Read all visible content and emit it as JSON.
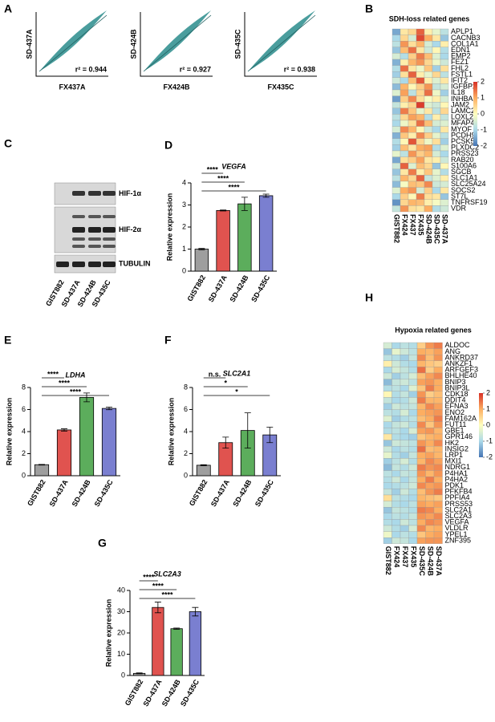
{
  "scatter_panels": {
    "label": "A",
    "plots": [
      {
        "x_label": "FX437A",
        "y_label": "SD-437A",
        "annotation": "r² = 0.944"
      },
      {
        "x_label": "FX424B",
        "y_label": "SD-424B",
        "annotation": "r² = 0.927"
      },
      {
        "x_label": "FX435C",
        "y_label": "SD-435C",
        "annotation": "r² = 0.938"
      }
    ]
  },
  "western_blot": {
    "label": "C",
    "bands": [
      "HIF-1α",
      "HIF-2α",
      "TUBULIN"
    ],
    "samples": [
      "GIST882",
      "SD-437A",
      "SD-424B",
      "SD-435C"
    ]
  },
  "chart_data": [
    {
      "label": "B",
      "type": "heatmap",
      "title": "SDH-loss related genes",
      "rows": [
        "APLP1",
        "CACNB3",
        "COL1A1",
        "EDN1",
        "EMP2",
        "FEZ1",
        "FHL2",
        "FSTL1",
        "IFIT2",
        "IGFBP2",
        "IL18",
        "INHBA",
        "JAM2",
        "LAMC2",
        "LOXL2",
        "MFAP4",
        "MYOF",
        "PCDH9",
        "PCSK5",
        "PLXDC2",
        "PRSS23",
        "RAB20",
        "S100A6",
        "SGCB",
        "SLC1A1",
        "SLC25A24",
        "SOCS2",
        "ST7L",
        "TNFRSF19",
        "VDR"
      ],
      "columns": [
        "GIST882",
        "FX424",
        "FX437",
        "FX435",
        "SD-424B",
        "SD-435C",
        "SD-437A"
      ],
      "values": [
        [
          -1.5,
          0.3,
          0.5,
          1.6,
          0.2,
          -0.3,
          -0.8
        ],
        [
          -1.0,
          0.5,
          -0.5,
          1.8,
          1.0,
          0.3,
          -1.2
        ],
        [
          -0.8,
          1.2,
          0.4,
          0.9,
          -0.5,
          -1.0,
          0.2
        ],
        [
          -1.2,
          0.8,
          1.5,
          0.3,
          -0.6,
          0.1,
          -0.9
        ],
        [
          -0.5,
          -0.9,
          0.6,
          1.4,
          0.8,
          -0.4,
          -1.0
        ],
        [
          -1.4,
          0.2,
          0.9,
          1.2,
          0.5,
          -0.2,
          -0.6
        ],
        [
          -0.9,
          1.5,
          0.3,
          -0.2,
          0.7,
          -1.1,
          0.4
        ],
        [
          -1.1,
          0.4,
          1.6,
          0.2,
          -0.3,
          0.5,
          -0.8
        ],
        [
          -0.6,
          -1.0,
          0.8,
          1.7,
          0.2,
          -0.4,
          0.3
        ],
        [
          -1.3,
          0.9,
          0.1,
          0.6,
          1.2,
          -0.7,
          -0.5
        ],
        [
          -0.4,
          1.1,
          -0.8,
          0.5,
          1.5,
          -0.2,
          -1.1
        ],
        [
          -1.6,
          0.6,
          1.3,
          0.4,
          -0.1,
          0.2,
          -0.5
        ],
        [
          -0.7,
          0.2,
          0.5,
          1.9,
          -0.4,
          -0.6,
          0.1
        ],
        [
          -1.2,
          1.4,
          0.7,
          -0.3,
          0.3,
          -0.8,
          0.5
        ],
        [
          -0.8,
          0.5,
          1.1,
          0.9,
          -0.9,
          0.2,
          -0.7
        ],
        [
          -1.0,
          -0.2,
          0.4,
          1.5,
          0.8,
          -0.5,
          -0.4
        ],
        [
          -0.5,
          1.3,
          0.9,
          0.1,
          -0.6,
          -1.0,
          0.3
        ],
        [
          -1.4,
          0.7,
          0.2,
          1.3,
          0.6,
          -0.3,
          -0.8
        ],
        [
          -0.9,
          0.1,
          1.7,
          0.5,
          -0.2,
          0.4,
          -1.1
        ],
        [
          -1.1,
          0.8,
          0.3,
          1.0,
          1.1,
          -0.9,
          -0.4
        ],
        [
          -0.3,
          -0.8,
          1.2,
          0.6,
          0.9,
          -0.5,
          -1.0
        ],
        [
          -1.5,
          0.4,
          0.6,
          1.1,
          0.3,
          0.2,
          -0.6
        ],
        [
          -0.6,
          1.6,
          -0.4,
          0.8,
          0.5,
          -1.2,
          0.1
        ],
        [
          -1.2,
          0.3,
          1.4,
          0.2,
          0.7,
          -0.3,
          -0.9
        ],
        [
          -0.8,
          0.9,
          0.5,
          1.6,
          -0.7,
          -0.4,
          0.2
        ],
        [
          -1.3,
          -0.1,
          0.8,
          0.7,
          1.3,
          -0.6,
          -0.5
        ],
        [
          -0.4,
          1.0,
          1.2,
          -0.5,
          0.6,
          -1.0,
          0.3
        ],
        [
          -1.0,
          0.6,
          0.1,
          1.4,
          0.4,
          0.3,
          -1.2
        ],
        [
          -1.7,
          0.5,
          0.9,
          0.8,
          0.2,
          -0.1,
          -0.4
        ],
        [
          -0.7,
          1.2,
          0.4,
          0.3,
          1.0,
          -0.9,
          -0.6
        ]
      ],
      "clim": [
        -2,
        2
      ],
      "cticks": [
        2,
        1,
        0,
        -1,
        -2
      ]
    },
    {
      "label": "D",
      "type": "bar",
      "title": "VEGFA",
      "y_label": "Relative expression",
      "categories": [
        "GIST882",
        "SD-437A",
        "SD-424B",
        "SD-435C"
      ],
      "values": [
        1,
        2.75,
        3.05,
        3.42
      ],
      "errors": [
        0.03,
        0.02,
        0.3,
        0.07
      ],
      "colors": [
        "#9e9e9e",
        "#e0534f",
        "#5cad5c",
        "#7a7fd0"
      ],
      "ylim": [
        0,
        4
      ],
      "yticks": [
        0,
        1,
        2,
        3,
        4
      ],
      "significance": [
        {
          "pair": [
            "GIST882",
            "SD-437A"
          ],
          "label": "****"
        },
        {
          "pair": [
            "GIST882",
            "SD-424B"
          ],
          "label": "****"
        },
        {
          "pair": [
            "GIST882",
            "SD-435C"
          ],
          "label": "****"
        }
      ]
    },
    {
      "label": "E",
      "type": "bar",
      "title": "LDHA",
      "y_label": "Relative expression",
      "categories": [
        "GIST882",
        "SD-437A",
        "SD-424B",
        "SD-435C"
      ],
      "values": [
        1,
        4.15,
        7.1,
        6.1
      ],
      "errors": [
        0.03,
        0.1,
        0.4,
        0.12
      ],
      "colors": [
        "#9e9e9e",
        "#e0534f",
        "#5cad5c",
        "#7a7fd0"
      ],
      "ylim": [
        0,
        8
      ],
      "yticks": [
        0,
        2,
        4,
        6,
        8
      ],
      "significance": [
        {
          "pair": [
            "GIST882",
            "SD-437A"
          ],
          "label": "****"
        },
        {
          "pair": [
            "GIST882",
            "SD-424B"
          ],
          "label": "****"
        },
        {
          "pair": [
            "GIST882",
            "SD-435C"
          ],
          "label": "****"
        }
      ]
    },
    {
      "label": "F",
      "type": "bar",
      "title": "SLC2A1",
      "y_label": "Relative expression",
      "categories": [
        "GIST882",
        "SD-437A",
        "SD-424B",
        "SD-435C"
      ],
      "values": [
        0.95,
        3.0,
        4.1,
        3.7
      ],
      "errors": [
        0.05,
        0.5,
        1.6,
        0.7
      ],
      "colors": [
        "#9e9e9e",
        "#e0534f",
        "#5cad5c",
        "#7a7fd0"
      ],
      "ylim": [
        0,
        8
      ],
      "yticks": [
        0,
        2,
        4,
        6,
        8
      ],
      "significance": [
        {
          "pair": [
            "GIST882",
            "SD-437A"
          ],
          "label": "n.s."
        },
        {
          "pair": [
            "GIST882",
            "SD-424B"
          ],
          "label": "*"
        },
        {
          "pair": [
            "GIST882",
            "SD-435C"
          ],
          "label": "*"
        }
      ]
    },
    {
      "label": "G",
      "type": "bar",
      "title": "SLC2A3",
      "y_label": "Relative expression",
      "categories": [
        "GIST882",
        "SD-437A",
        "SD-424B",
        "SD-435C"
      ],
      "values": [
        1,
        32,
        22,
        30
      ],
      "errors": [
        0.2,
        2.5,
        0.3,
        2
      ],
      "colors": [
        "#9e9e9e",
        "#e0534f",
        "#5cad5c",
        "#7a7fd0"
      ],
      "ylim": [
        0,
        40
      ],
      "yticks": [
        0,
        10,
        20,
        30,
        40
      ],
      "significance": [
        {
          "pair": [
            "GIST882",
            "SD-437A"
          ],
          "label": "****"
        },
        {
          "pair": [
            "GIST882",
            "SD-424B"
          ],
          "label": "****"
        },
        {
          "pair": [
            "GIST882",
            "SD-435C"
          ],
          "label": "****"
        }
      ]
    },
    {
      "label": "H",
      "type": "heatmap",
      "title": "Hypoxia related genes",
      "rows": [
        "ALDOC",
        "ANG",
        "ANKRD37",
        "ANKZF1",
        "ARFGEF3",
        "BHLHE40",
        "BNIP3",
        "BNIP3L",
        "CDK18",
        "DDIT4",
        "EFNA3",
        "ENO2",
        "FAM162A",
        "FUT11",
        "GBE1",
        "GPR146",
        "HK2",
        "INSIG2",
        "LRP1",
        "MXI1",
        "NDRG1",
        "P4HA1",
        "P4HA2",
        "PDK1",
        "PFKFB4",
        "PPFIA4",
        "PRSS53",
        "SLC2A1",
        "SLC2A3",
        "VEGFA",
        "VLDLR",
        "YPEL1",
        "ZNF395"
      ],
      "columns": [
        "GIST882",
        "FX424",
        "FX437",
        "FX435",
        "SD-435C",
        "SD-424B",
        "SD-437A"
      ],
      "values": [
        [
          -0.5,
          -1.0,
          -0.8,
          -0.9,
          0.6,
          1.2,
          1.4
        ],
        [
          -1.2,
          -0.3,
          -0.6,
          -0.8,
          1.0,
          0.9,
          1.1
        ],
        [
          -0.8,
          -0.9,
          -1.1,
          -0.7,
          1.3,
          0.8,
          1.2
        ],
        [
          0.2,
          -0.6,
          -0.9,
          -1.0,
          0.9,
          0.7,
          0.6
        ],
        [
          -1.0,
          -0.5,
          -0.7,
          -0.9,
          1.5,
          0.6,
          1.0
        ],
        [
          -0.6,
          -1.1,
          -0.8,
          -0.5,
          0.8,
          1.1,
          1.3
        ],
        [
          -1.3,
          -0.7,
          -0.6,
          -0.8,
          1.1,
          1.2,
          1.0
        ],
        [
          -0.9,
          -0.8,
          -1.0,
          -0.4,
          0.7,
          1.4,
          1.0
        ],
        [
          0.1,
          -0.9,
          -0.7,
          -1.1,
          1.2,
          0.6,
          0.8
        ],
        [
          -0.7,
          -1.0,
          -0.9,
          -0.6,
          1.4,
          0.9,
          0.9
        ],
        [
          -1.1,
          -0.6,
          -0.8,
          -0.7,
          0.9,
          1.3,
          1.1
        ],
        [
          -0.8,
          -0.9,
          -0.5,
          -1.0,
          1.0,
          1.1,
          1.2
        ],
        [
          -0.4,
          -1.1,
          -0.9,
          -0.8,
          0.8,
          1.0,
          1.4
        ],
        [
          -1.0,
          -0.7,
          -0.6,
          -0.9,
          1.3,
          0.7,
          1.2
        ],
        [
          -0.9,
          -0.8,
          -1.0,
          -0.5,
          1.1,
          1.2,
          0.9
        ],
        [
          0.3,
          -0.9,
          -1.0,
          -1.1,
          0.7,
          0.9,
          1.0
        ],
        [
          -1.2,
          -0.6,
          -0.7,
          -0.8,
          1.2,
          1.0,
          1.3
        ],
        [
          -0.6,
          -1.0,
          -0.8,
          -0.9,
          1.5,
          0.8,
          0.9
        ],
        [
          -0.3,
          -0.9,
          -1.1,
          -0.7,
          1.0,
          1.1,
          0.9
        ],
        [
          -1.1,
          -0.8,
          -0.5,
          -0.9,
          0.9,
          1.3,
          1.1
        ],
        [
          -1.3,
          -0.7,
          -0.9,
          -0.6,
          1.4,
          1.2,
          1.3
        ],
        [
          -0.8,
          -1.0,
          -0.7,
          -0.8,
          1.2,
          0.9,
          1.2
        ],
        [
          -0.9,
          -0.6,
          -1.0,
          -0.7,
          1.0,
          1.4,
          1.0
        ],
        [
          -1.0,
          -0.9,
          -0.8,
          -0.6,
          1.3,
          1.1,
          1.2
        ],
        [
          -0.7,
          -1.1,
          -0.6,
          -0.9,
          0.8,
          1.2,
          1.4
        ],
        [
          0.4,
          -0.8,
          -0.9,
          -1.0,
          0.9,
          0.8,
          0.7
        ],
        [
          -0.5,
          -0.9,
          -1.0,
          -0.8,
          1.1,
          1.0,
          1.1
        ],
        [
          -1.2,
          -0.7,
          -0.8,
          -0.9,
          1.4,
          1.3,
          1.0
        ],
        [
          -1.0,
          -0.8,
          -0.9,
          -0.7,
          1.2,
          1.1,
          1.3
        ],
        [
          -0.9,
          -1.0,
          -0.6,
          -0.8,
          1.0,
          1.3,
          1.2
        ],
        [
          -0.6,
          -0.9,
          -1.1,
          -0.5,
          1.3,
          0.9,
          1.0
        ],
        [
          -0.2,
          -1.0,
          -0.8,
          -0.9,
          0.7,
          1.0,
          1.1
        ],
        [
          -1.1,
          -0.6,
          -0.7,
          -1.0,
          1.1,
          1.2,
          1.2
        ]
      ],
      "clim": [
        -2,
        2
      ],
      "cticks": [
        2,
        1,
        0,
        -1,
        -2
      ]
    }
  ]
}
